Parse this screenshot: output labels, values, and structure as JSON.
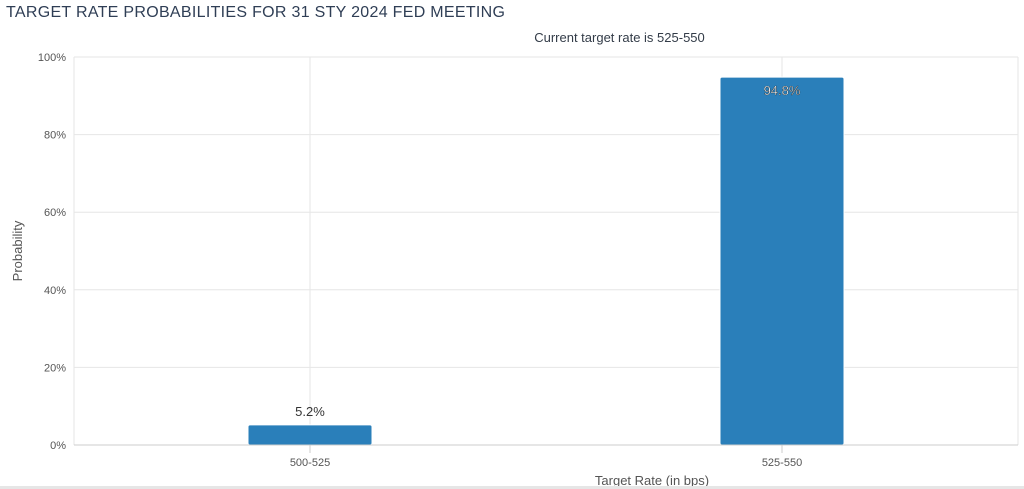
{
  "chart_data": {
    "type": "bar",
    "title": "TARGET RATE PROBABILITIES FOR 31 STY 2024 FED MEETING",
    "subtitle": "Current target rate is 525-550",
    "xlabel": "Target Rate (in bps)",
    "ylabel": "Probability",
    "categories": [
      "500-525",
      "525-550"
    ],
    "values": [
      5.2,
      94.8
    ],
    "data_labels": [
      "5.2%",
      "94.8%"
    ],
    "ylim": [
      0,
      100
    ],
    "yticks": [
      "0%",
      "20%",
      "40%",
      "60%",
      "80%",
      "100%"
    ],
    "grid": true,
    "bar_color": "#2a7fba"
  }
}
